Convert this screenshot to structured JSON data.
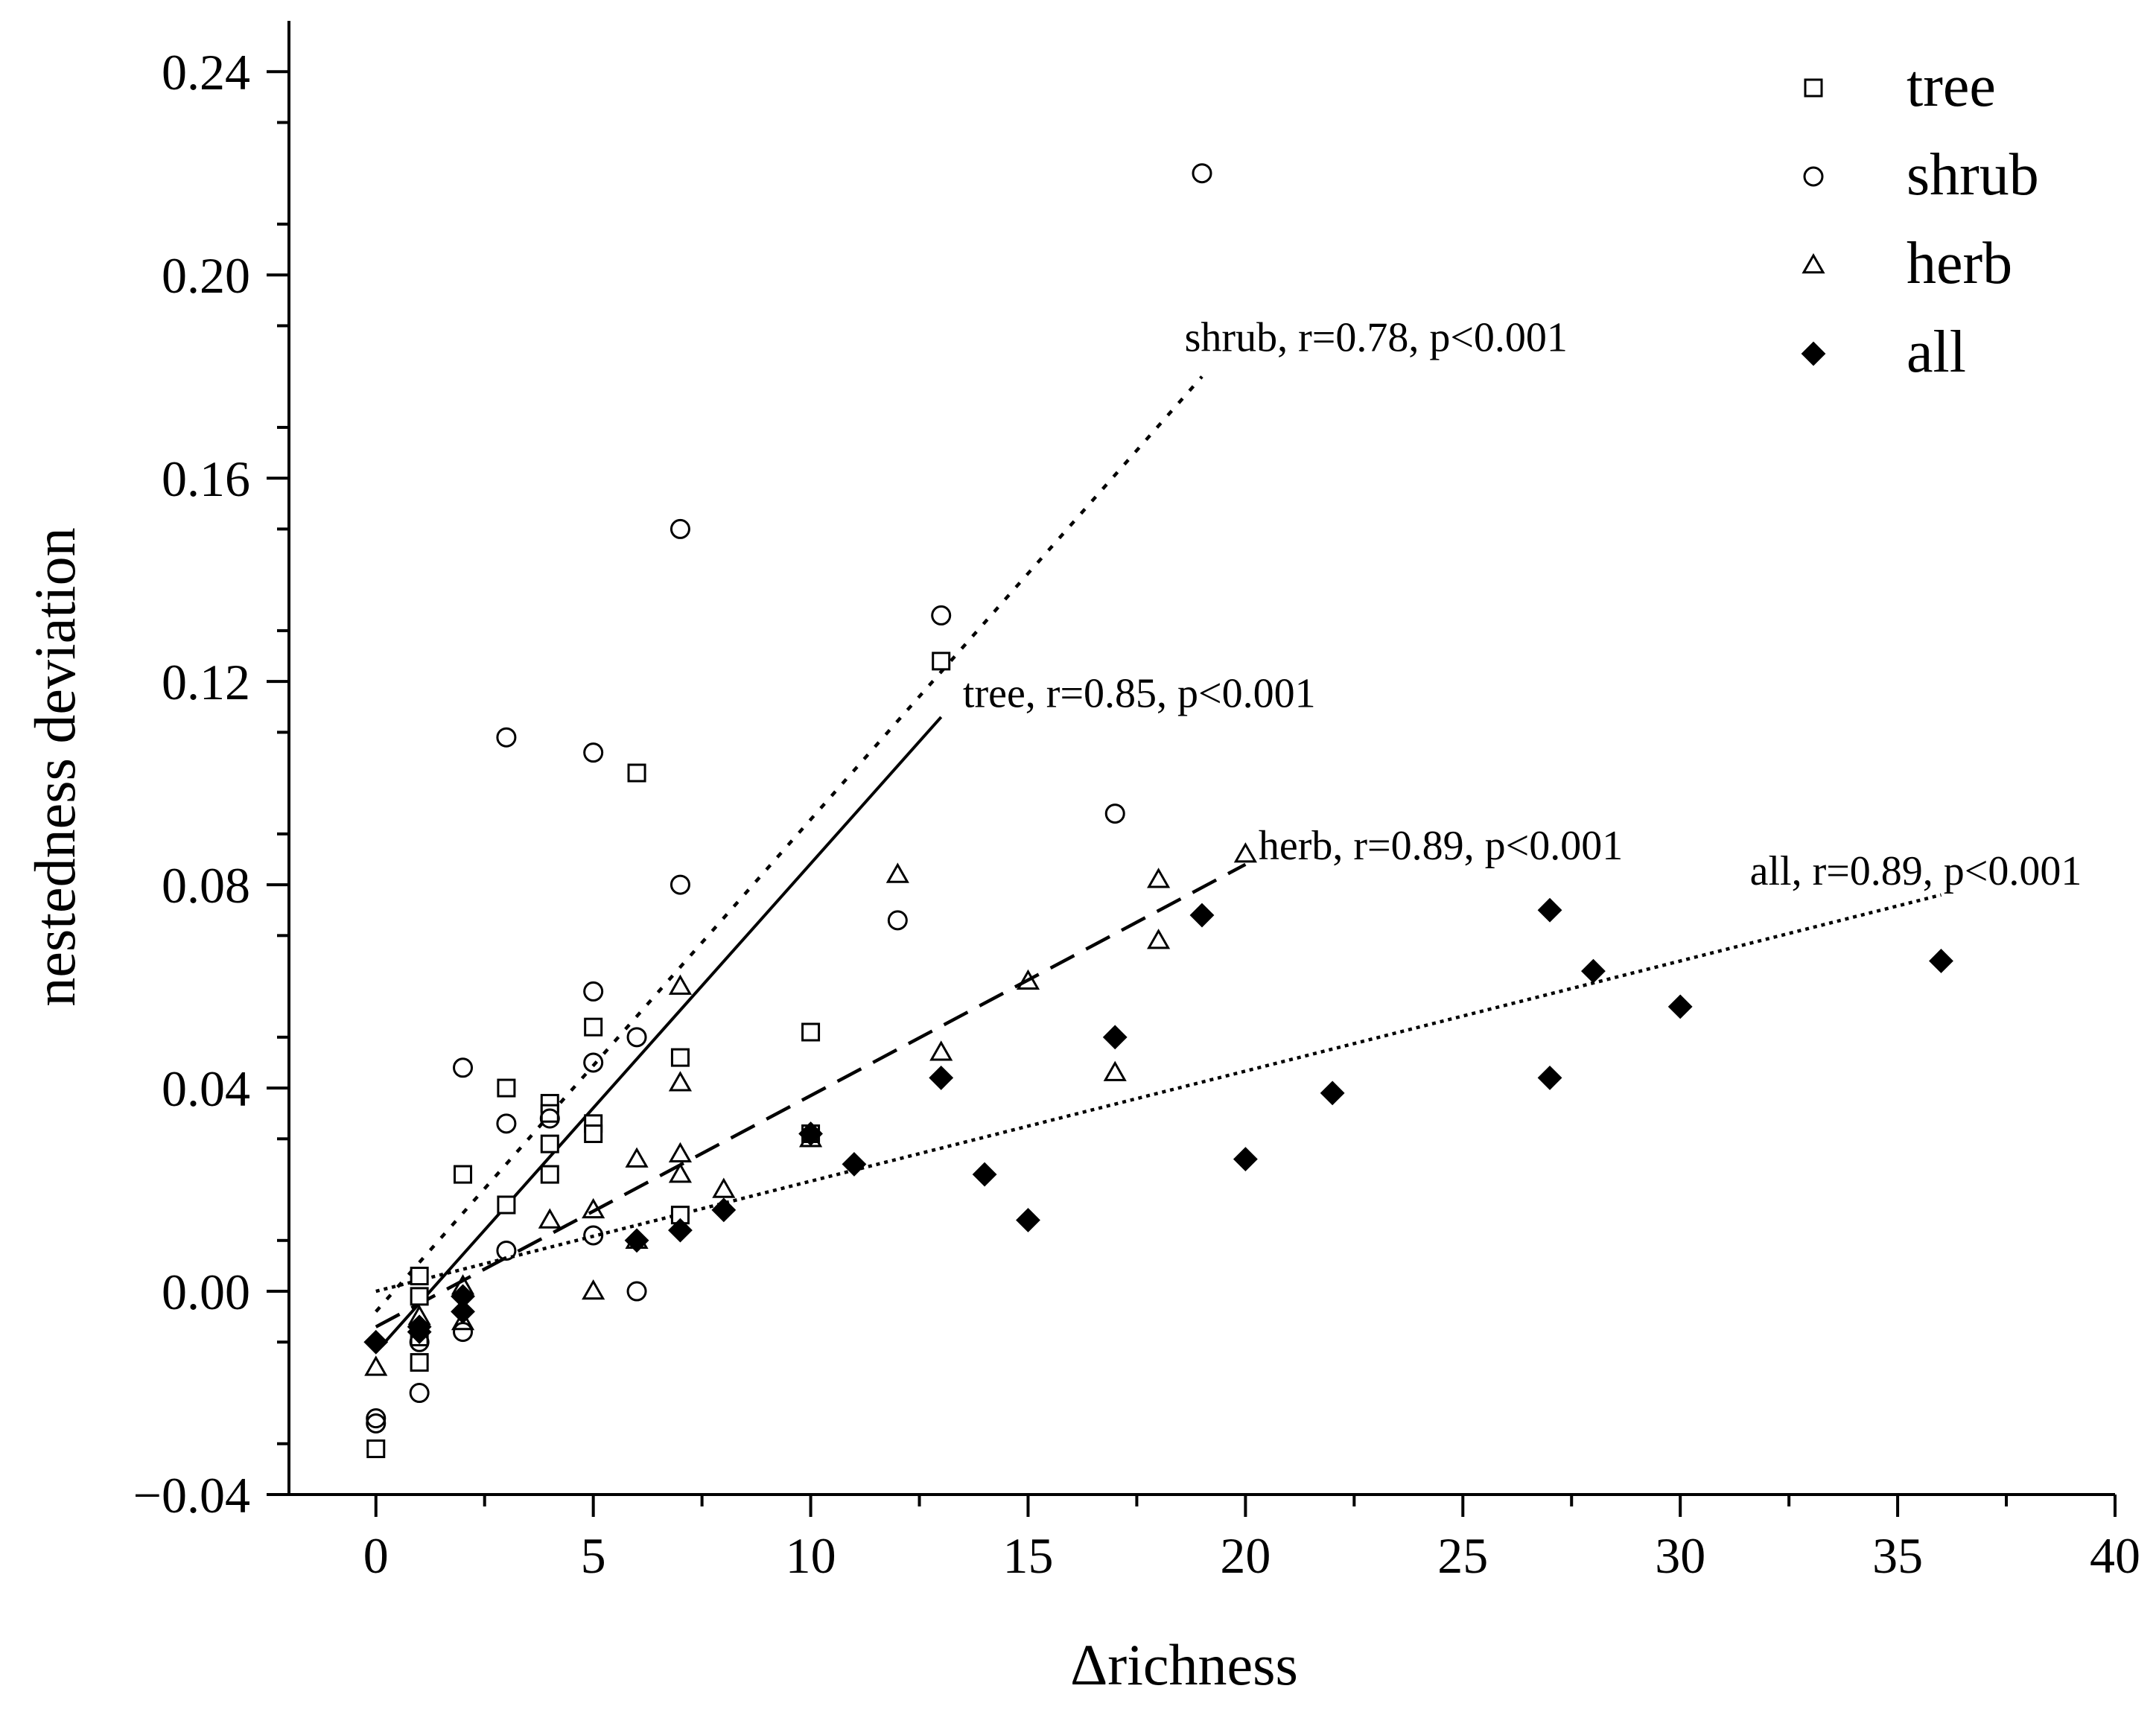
{
  "chart_data": {
    "type": "scatter",
    "title": "",
    "xlabel": "Δrichness",
    "ylabel": "nestedness deviation",
    "xlim": [
      -2,
      40
    ],
    "ylim": [
      -0.04,
      0.25
    ],
    "xticks": [
      0,
      5,
      10,
      15,
      20,
      25,
      30,
      35,
      40
    ],
    "yticks": [
      -0.04,
      0.0,
      0.04,
      0.08,
      0.12,
      0.16,
      0.2,
      0.24
    ],
    "xtick_labels": [
      "0",
      "5",
      "10",
      "15",
      "20",
      "25",
      "30",
      "35",
      "40"
    ],
    "ytick_labels": [
      "−0.04",
      "0.00",
      "0.04",
      "0.08",
      "0.12",
      "0.16",
      "0.20",
      "0.24"
    ],
    "legend_position": "top-right",
    "series": [
      {
        "name": "tree",
        "marker": "open-square",
        "points": [
          [
            0,
            -0.031
          ],
          [
            1,
            0.003
          ],
          [
            1,
            -0.001
          ],
          [
            1,
            -0.009
          ],
          [
            1,
            -0.014
          ],
          [
            2,
            0.023
          ],
          [
            3,
            0.04
          ],
          [
            3,
            0.017
          ],
          [
            4,
            0.037
          ],
          [
            4,
            0.035
          ],
          [
            4,
            0.029
          ],
          [
            4,
            0.023
          ],
          [
            5,
            0.052
          ],
          [
            5,
            0.033
          ],
          [
            5,
            0.031
          ],
          [
            6,
            0.102
          ],
          [
            7,
            0.046
          ],
          [
            7,
            0.015
          ],
          [
            10,
            0.051
          ],
          [
            10,
            0.031
          ],
          [
            13,
            0.124
          ]
        ]
      },
      {
        "name": "shrub",
        "marker": "open-circle",
        "points": [
          [
            0,
            -0.025
          ],
          [
            0,
            -0.026
          ],
          [
            1,
            -0.02
          ],
          [
            1,
            -0.01
          ],
          [
            2,
            0.044
          ],
          [
            2,
            -0.008
          ],
          [
            3,
            0.109
          ],
          [
            3,
            0.033
          ],
          [
            3,
            0.008
          ],
          [
            4,
            0.034
          ],
          [
            5,
            0.106
          ],
          [
            5,
            0.059
          ],
          [
            5,
            0.045
          ],
          [
            5,
            0.011
          ],
          [
            6,
            0.05
          ],
          [
            6,
            0.0
          ],
          [
            7,
            0.15
          ],
          [
            7,
            0.08
          ],
          [
            12,
            0.073
          ],
          [
            13,
            0.133
          ],
          [
            17,
            0.094
          ],
          [
            19,
            0.22
          ]
        ]
      },
      {
        "name": "herb",
        "marker": "open-triangle",
        "points": [
          [
            0,
            -0.015
          ],
          [
            1,
            -0.005
          ],
          [
            2,
            0.001
          ],
          [
            2,
            -0.006
          ],
          [
            4,
            0.014
          ],
          [
            5,
            0.016
          ],
          [
            5,
            0.0
          ],
          [
            6,
            0.026
          ],
          [
            6,
            0.01
          ],
          [
            7,
            0.06
          ],
          [
            7,
            0.041
          ],
          [
            7,
            0.027
          ],
          [
            7,
            0.023
          ],
          [
            8,
            0.02
          ],
          [
            10,
            0.03
          ],
          [
            12,
            0.082
          ],
          [
            13,
            0.047
          ],
          [
            15,
            0.061
          ],
          [
            17,
            0.043
          ],
          [
            18,
            0.081
          ],
          [
            18,
            0.069
          ],
          [
            20,
            0.086
          ]
        ]
      },
      {
        "name": "all",
        "marker": "filled-diamond",
        "points": [
          [
            0,
            -0.01
          ],
          [
            1,
            -0.007
          ],
          [
            1,
            -0.008
          ],
          [
            2,
            -0.001
          ],
          [
            2,
            -0.004
          ],
          [
            6,
            0.01
          ],
          [
            7,
            0.012
          ],
          [
            8,
            0.016
          ],
          [
            10,
            0.031
          ],
          [
            11,
            0.025
          ],
          [
            13,
            0.042
          ],
          [
            14,
            0.023
          ],
          [
            15,
            0.014
          ],
          [
            17,
            0.05
          ],
          [
            19,
            0.074
          ],
          [
            20,
            0.026
          ],
          [
            22,
            0.039
          ],
          [
            27,
            0.075
          ],
          [
            27,
            0.042
          ],
          [
            28,
            0.063
          ],
          [
            30,
            0.056
          ],
          [
            36,
            0.065
          ]
        ]
      }
    ],
    "fit_lines": [
      {
        "series": "shrub",
        "style": "dotted",
        "x": [
          0,
          19
        ],
        "y": [
          -0.004,
          0.18
        ]
      },
      {
        "series": "tree",
        "style": "solid",
        "x": [
          0,
          13
        ],
        "y": [
          -0.012,
          0.113
        ]
      },
      {
        "series": "herb",
        "style": "dashed",
        "x": [
          0,
          20
        ],
        "y": [
          -0.007,
          0.084
        ]
      },
      {
        "series": "all",
        "style": "fine-dotted",
        "x": [
          0,
          36
        ],
        "y": [
          0.0,
          0.078
        ]
      }
    ],
    "annotations": [
      {
        "text": "shrub, r=0.78, p<0.001",
        "x": 18.6,
        "y": 0.185
      },
      {
        "text": "tree, r=0.85, p<0.001",
        "x": 13.5,
        "y": 0.115
      },
      {
        "text": "herb, r=0.89, p<0.001",
        "x": 20.3,
        "y": 0.085
      },
      {
        "text": "all, r=0.89, p<0.001",
        "x": 31.6,
        "y": 0.08
      }
    ]
  }
}
